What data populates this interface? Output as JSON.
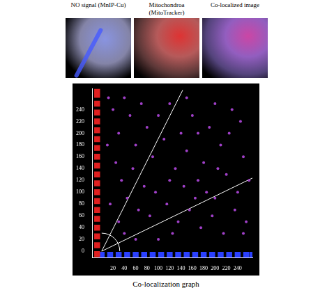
{
  "images": [
    {
      "title": "NO signal (MnIP-Cu)"
    },
    {
      "title": "Mitochondroa (MitoTracker)"
    },
    {
      "title": "Co-localized image"
    }
  ],
  "chart_data": {
    "type": "scatter",
    "title": "Co-localization graph",
    "xlim": [
      -17,
      266
    ],
    "ylim": [
      -11,
      275
    ],
    "xticks": [
      20,
      40,
      60,
      80,
      100,
      120,
      140,
      160,
      180,
      200,
      220,
      240
    ],
    "yticks": [
      0,
      20,
      40,
      60,
      80,
      100,
      120,
      140,
      160,
      180,
      200,
      220,
      240
    ],
    "grid": false,
    "series": [
      {
        "color": "#a040c8",
        "marker": "circle",
        "x": [
          20,
          30,
          25,
          40,
          50,
          35,
          60,
          45,
          70,
          80,
          55,
          90,
          100,
          110,
          75,
          65,
          120,
          130,
          140,
          150,
          95,
          85,
          160,
          170,
          180,
          190,
          200,
          210,
          220,
          230,
          240,
          250,
          115,
          135,
          155,
          175,
          195,
          215,
          235,
          255,
          125,
          100,
          145,
          165,
          185,
          205,
          225,
          245,
          30,
          15,
          10,
          12,
          60,
          40,
          260,
          250,
          200,
          150,
          170,
          120
        ],
        "values": [
          240,
          200,
          150,
          260,
          230,
          120,
          180,
          90,
          250,
          210,
          140,
          160,
          230,
          190,
          110,
          70,
          250,
          140,
          200,
          170,
          100,
          60,
          230,
          120,
          150,
          210,
          90,
          180,
          130,
          240,
          100,
          160,
          80,
          50,
          70,
          40,
          60,
          30,
          70,
          50,
          30,
          20,
          110,
          90,
          100,
          140,
          200,
          220,
          50,
          80,
          180,
          260,
          20,
          30,
          120,
          30,
          250,
          260,
          200,
          120
        ]
      },
      {
        "color": "#e02020",
        "marker": "square",
        "x": [
          -8,
          -8,
          -8,
          -8,
          -8,
          -8,
          -8,
          -8,
          -8,
          -8,
          -8,
          -8,
          -8,
          -8,
          -8,
          -8,
          -8,
          -8,
          -8,
          -8
        ],
        "values": [
          -5,
          10,
          25,
          40,
          55,
          70,
          85,
          100,
          115,
          130,
          145,
          160,
          175,
          190,
          205,
          220,
          235,
          250,
          265,
          275
        ]
      },
      {
        "color": "#2a40ff",
        "marker": "square",
        "x": [
          0,
          15,
          30,
          45,
          60,
          75,
          90,
          105,
          120,
          135,
          150,
          165,
          180,
          195,
          210,
          225,
          240,
          255,
          266
        ],
        "values": [
          -6,
          -6,
          -6,
          -6,
          -6,
          -6,
          -6,
          -6,
          -6,
          -6,
          -6,
          -6,
          -6,
          -6,
          -6,
          -6,
          -6,
          -6,
          -6
        ]
      },
      {
        "type": "line",
        "color": "#ffffff",
        "x": [
          0,
          143
        ],
        "values": [
          0,
          273
        ]
      },
      {
        "type": "line",
        "color": "#ffffff",
        "x": [
          0,
          266
        ],
        "values": [
          0,
          124
        ]
      }
    ]
  }
}
